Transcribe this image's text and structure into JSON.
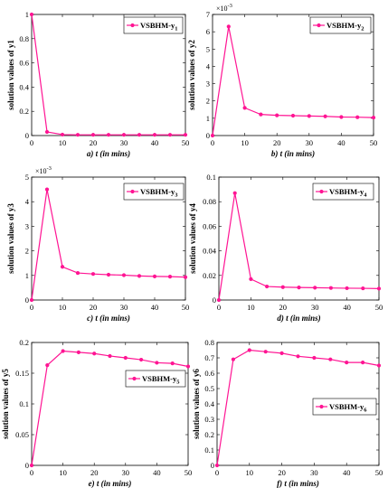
{
  "colors": {
    "series": "#ff1493",
    "axis": "#000000",
    "background": "#ffffff"
  },
  "chart_data": [
    {
      "type": "line",
      "panel": "a",
      "caption": "a) t (in mins)",
      "ylabel": "solution values of y1",
      "legend": {
        "text": "VSBHM-y",
        "sub": "1",
        "placement": "top-right"
      },
      "multiplier": "",
      "x": [
        0,
        5,
        10,
        15,
        20,
        25,
        30,
        35,
        40,
        45,
        50
      ],
      "values": [
        1,
        0.03,
        0.008,
        0.006,
        0.006,
        0.006,
        0.006,
        0.006,
        0.006,
        0.006,
        0.006
      ],
      "xlim": [
        0,
        50
      ],
      "ylim": [
        0,
        1
      ],
      "xticks": [
        0,
        10,
        20,
        30,
        40,
        50
      ],
      "yticks": [
        0,
        0.2,
        0.4,
        0.6,
        0.8,
        1
      ],
      "xtick_labels": [
        "0",
        "10",
        "20",
        "30",
        "40",
        "50"
      ],
      "ytick_labels": [
        "0",
        "0.2",
        "0.4",
        "0.6",
        "0.8",
        "1"
      ]
    },
    {
      "type": "line",
      "panel": "b",
      "caption": "b) t (in mins)",
      "ylabel": "solution values of y2",
      "legend": {
        "text": "VSBHM-y",
        "sub": "2",
        "placement": "top-right"
      },
      "multiplier": "×10",
      "multiplier_exp": "-3",
      "x": [
        0,
        5,
        10,
        15,
        20,
        25,
        30,
        35,
        40,
        45,
        50
      ],
      "values": [
        0,
        6.3,
        1.6,
        1.22,
        1.17,
        1.15,
        1.13,
        1.11,
        1.07,
        1.06,
        1.04
      ],
      "xlim": [
        0,
        50
      ],
      "ylim": [
        0,
        7
      ],
      "xticks": [
        0,
        10,
        20,
        30,
        40,
        50
      ],
      "yticks": [
        0,
        1,
        2,
        3,
        4,
        5,
        6,
        7
      ],
      "xtick_labels": [
        "0",
        "10",
        "20",
        "30",
        "40",
        "50"
      ],
      "ytick_labels": [
        "0",
        "1",
        "2",
        "3",
        "4",
        "5",
        "6",
        "7"
      ]
    },
    {
      "type": "line",
      "panel": "c",
      "caption": "c) t (in mins)",
      "ylabel": "solution values of y3",
      "legend": {
        "text": "VSBHM-y",
        "sub": "3",
        "placement": "top-right"
      },
      "multiplier": "×10",
      "multiplier_exp": "-3",
      "x": [
        0,
        5,
        10,
        15,
        20,
        25,
        30,
        35,
        40,
        45,
        50
      ],
      "values": [
        0,
        4.5,
        1.35,
        1.1,
        1.06,
        1.03,
        1.01,
        0.98,
        0.96,
        0.95,
        0.93
      ],
      "xlim": [
        0,
        50
      ],
      "ylim": [
        0,
        5
      ],
      "xticks": [
        0,
        10,
        20,
        30,
        40,
        50
      ],
      "yticks": [
        0,
        1,
        2,
        3,
        4,
        5
      ],
      "xtick_labels": [
        "0",
        "10",
        "20",
        "30",
        "40",
        "50"
      ],
      "ytick_labels": [
        "0",
        "1",
        "2",
        "3",
        "4",
        "5"
      ]
    },
    {
      "type": "line",
      "panel": "d",
      "caption": "d) t (in mins)",
      "ylabel": "solution values of y4",
      "legend": {
        "text": "VSBHM-y",
        "sub": "4",
        "placement": "top-right"
      },
      "multiplier": "",
      "x": [
        0,
        5,
        10,
        15,
        20,
        25,
        30,
        35,
        40,
        45,
        50
      ],
      "values": [
        0,
        0.087,
        0.017,
        0.011,
        0.0105,
        0.0102,
        0.01,
        0.0098,
        0.0096,
        0.0095,
        0.0093
      ],
      "xlim": [
        0,
        50
      ],
      "ylim": [
        0,
        0.1
      ],
      "xticks": [
        0,
        10,
        20,
        30,
        40,
        50
      ],
      "yticks": [
        0,
        0.02,
        0.04,
        0.06,
        0.08,
        0.1
      ],
      "xtick_labels": [
        "0",
        "10",
        "20",
        "30",
        "40",
        "50"
      ],
      "ytick_labels": [
        "0",
        "0.02",
        "0.04",
        "0.06",
        "0.08",
        "0.1"
      ]
    },
    {
      "type": "line",
      "panel": "e",
      "caption": "e) t (in mins)",
      "ylabel": "solution values of y5",
      "legend": {
        "text": "VSBHM-y",
        "sub": "5",
        "placement": "middle-right"
      },
      "multiplier": "",
      "x": [
        0,
        5,
        10,
        15,
        20,
        25,
        30,
        35,
        40,
        45,
        50
      ],
      "values": [
        0,
        0.163,
        0.186,
        0.184,
        0.182,
        0.178,
        0.175,
        0.172,
        0.167,
        0.166,
        0.161
      ],
      "xlim": [
        0,
        50
      ],
      "ylim": [
        0,
        0.2
      ],
      "xticks": [
        0,
        10,
        20,
        30,
        40,
        50
      ],
      "yticks": [
        0,
        0.05,
        0.1,
        0.15,
        0.2
      ],
      "xtick_labels": [
        "0",
        "10",
        "20",
        "30",
        "40",
        "50"
      ],
      "ytick_labels": [
        "0",
        "0.05",
        "0.1",
        "0.15",
        "0.2"
      ]
    },
    {
      "type": "line",
      "panel": "f",
      "caption": "f) t (in mins)",
      "ylabel": "solution values of y6",
      "legend": {
        "text": "VSBHM-y",
        "sub": "6",
        "placement": "middle-right"
      },
      "multiplier": "",
      "x": [
        0,
        5,
        10,
        15,
        20,
        25,
        30,
        35,
        40,
        45,
        50
      ],
      "values": [
        0,
        0.69,
        0.75,
        0.74,
        0.73,
        0.71,
        0.7,
        0.69,
        0.67,
        0.67,
        0.65
      ],
      "xlim": [
        0,
        50
      ],
      "ylim": [
        0,
        0.8
      ],
      "xticks": [
        0,
        10,
        20,
        30,
        40,
        50
      ],
      "yticks": [
        0,
        0.1,
        0.2,
        0.3,
        0.4,
        0.5,
        0.6,
        0.7,
        0.8
      ],
      "xtick_labels": [
        "0",
        "10",
        "20",
        "30",
        "40",
        "50"
      ],
      "ytick_labels": [
        "0",
        "0.1",
        "0.2",
        "0.3",
        "0.4",
        "0.5",
        "0.6",
        "0.7",
        "0.8"
      ]
    }
  ]
}
